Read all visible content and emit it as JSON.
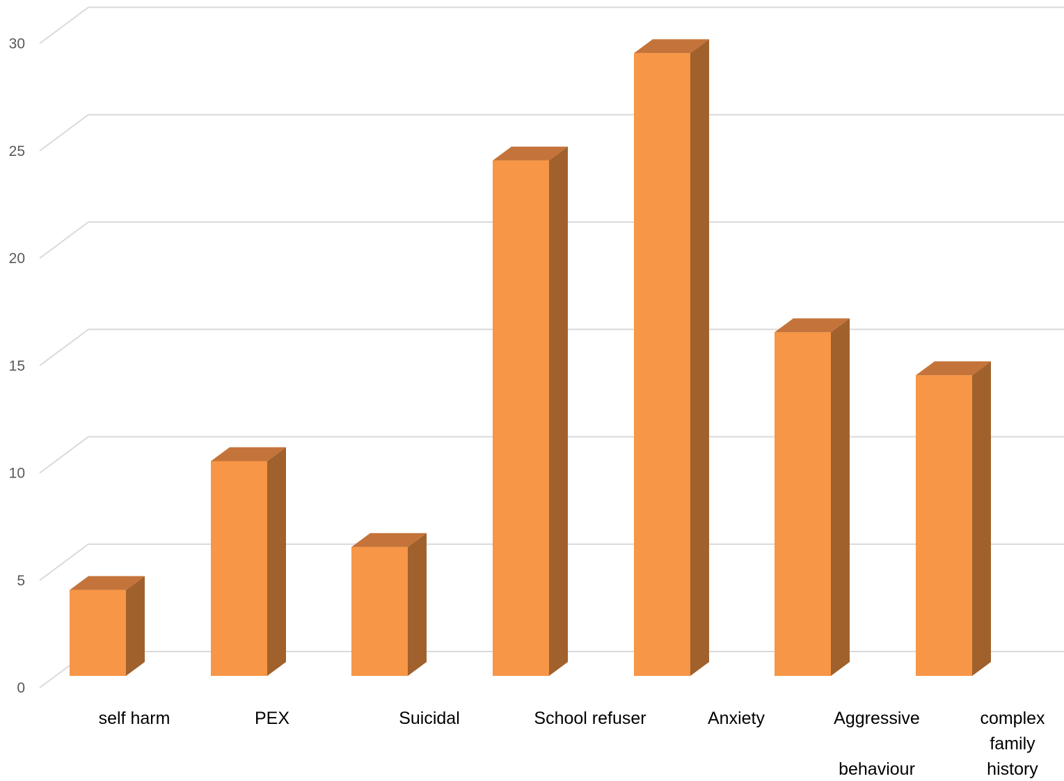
{
  "chart_data": {
    "type": "bar",
    "style": "3d-column",
    "categories": [
      "self harm",
      "PEX",
      "Suicidal",
      "School refuser",
      "Anxiety",
      "Aggressive behaviour",
      "complex family history"
    ],
    "category_lines": [
      [
        "self harm"
      ],
      [
        "PEX"
      ],
      [
        "Suicidal"
      ],
      [
        "School refuser"
      ],
      [
        "Anxiety"
      ],
      [
        "Aggressive",
        "",
        "behaviour"
      ],
      [
        "complex",
        "family",
        "history"
      ]
    ],
    "values": [
      4,
      10,
      6,
      24,
      29,
      16,
      14
    ],
    "title": "",
    "xlabel": "",
    "ylabel": "",
    "ylim": [
      0,
      30
    ],
    "yticks": [
      0,
      5,
      10,
      15,
      20,
      25,
      30
    ],
    "grid": true,
    "legend": "none",
    "colors": {
      "bar_front": "#F79646",
      "bar_top": "#C4743A",
      "bar_side": "#A0612D",
      "grid": "#D9D9D9",
      "tick_text": "#595959",
      "category_text": "#000000"
    }
  }
}
